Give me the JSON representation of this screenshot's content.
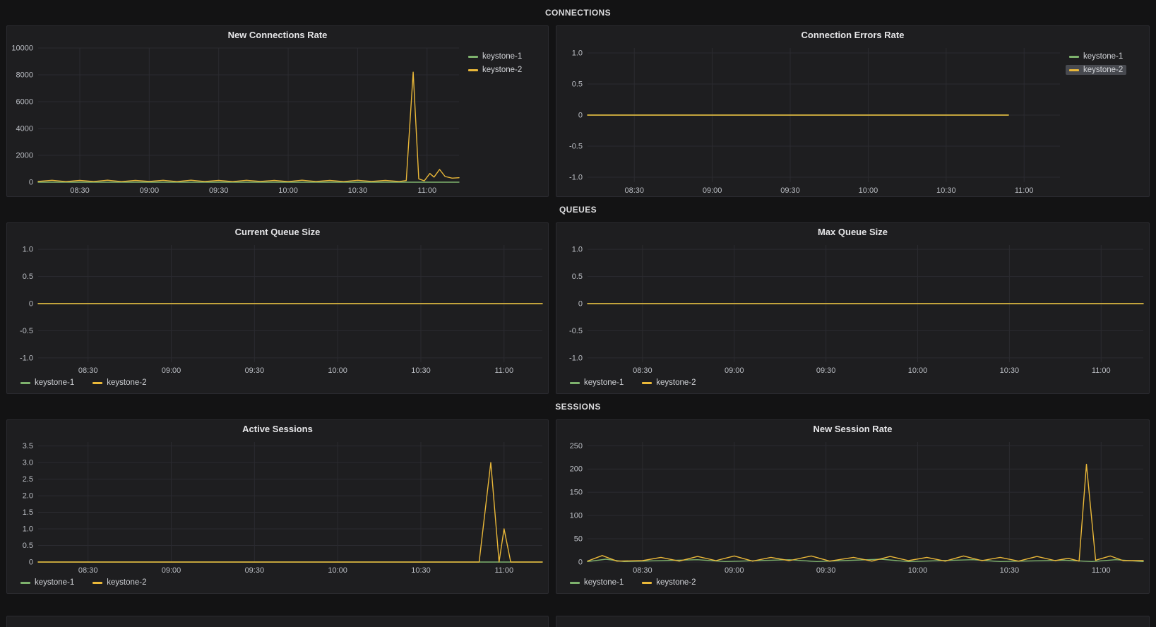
{
  "colors": {
    "background": "#131314",
    "panel_background": "#1e1e20",
    "grid": "#2b2b30",
    "tick_label": "#bcbfc5",
    "title": "#e6e6e8",
    "green": "#7eb26d",
    "yellow": "#eab839"
  },
  "dashboard": {
    "rows": [
      {
        "title": "CONNECTIONS"
      },
      {
        "title": "QUEUES"
      },
      {
        "title": "SESSIONS"
      }
    ]
  },
  "chart_data": [
    {
      "type": "line",
      "title": "New Connections Rate",
      "legend_position": "right",
      "grid": true,
      "xlim": [
        8.2,
        11.23
      ],
      "xtick_values": [
        8.5,
        9,
        9.5,
        10,
        10.5,
        11
      ],
      "xtick_labels": [
        "08:30",
        "09:00",
        "09:30",
        "10:00",
        "10:30",
        "11:00"
      ],
      "ylim": [
        0,
        10000
      ],
      "ytick_values": [
        0,
        2000,
        4000,
        6000,
        8000,
        10000
      ],
      "ytick_labels": [
        "0",
        "2000",
        "4000",
        "6000",
        "8000",
        "10000"
      ],
      "series": [
        {
          "name": "keystone-1",
          "color": "#7eb26d",
          "points": [
            [
              8.2,
              0
            ],
            [
              11.23,
              0
            ]
          ]
        },
        {
          "name": "keystone-2",
          "color": "#eab839",
          "points": [
            [
              8.2,
              60
            ],
            [
              8.3,
              140
            ],
            [
              8.4,
              40
            ],
            [
              8.5,
              130
            ],
            [
              8.6,
              50
            ],
            [
              8.7,
              150
            ],
            [
              8.8,
              40
            ],
            [
              8.9,
              130
            ],
            [
              9.0,
              60
            ],
            [
              9.1,
              140
            ],
            [
              9.2,
              40
            ],
            [
              9.3,
              150
            ],
            [
              9.4,
              50
            ],
            [
              9.5,
              130
            ],
            [
              9.6,
              40
            ],
            [
              9.7,
              140
            ],
            [
              9.8,
              60
            ],
            [
              9.9,
              130
            ],
            [
              10.0,
              40
            ],
            [
              10.1,
              150
            ],
            [
              10.2,
              50
            ],
            [
              10.3,
              130
            ],
            [
              10.4,
              40
            ],
            [
              10.5,
              140
            ],
            [
              10.6,
              60
            ],
            [
              10.7,
              130
            ],
            [
              10.8,
              50
            ],
            [
              10.85,
              120
            ],
            [
              10.9,
              8200
            ],
            [
              10.94,
              250
            ],
            [
              10.98,
              100
            ],
            [
              11.02,
              650
            ],
            [
              11.05,
              380
            ],
            [
              11.09,
              950
            ],
            [
              11.13,
              420
            ],
            [
              11.18,
              300
            ],
            [
              11.23,
              330
            ]
          ]
        }
      ]
    },
    {
      "type": "line",
      "title": "Connection Errors Rate",
      "legend_position": "right",
      "highlighted_series": "keystone-2",
      "grid": true,
      "xlim": [
        8.2,
        11.23
      ],
      "xtick_values": [
        8.5,
        9,
        9.5,
        10,
        10.5,
        11
      ],
      "xtick_labels": [
        "08:30",
        "09:00",
        "09:30",
        "10:00",
        "10:30",
        "11:00"
      ],
      "ylim": [
        -1.08,
        1.08
      ],
      "ytick_values": [
        1,
        0.5,
        0,
        -0.5,
        -1
      ],
      "ytick_labels": [
        "1.0",
        "0.5",
        "0",
        "-0.5",
        "-1.0"
      ],
      "series": [
        {
          "name": "keystone-1",
          "color": "#7eb26d",
          "points": [
            [
              8.2,
              0
            ],
            [
              10.9,
              0
            ]
          ]
        },
        {
          "name": "keystone-2",
          "color": "#eab839",
          "points": [
            [
              8.2,
              0
            ],
            [
              10.9,
              0
            ]
          ],
          "highlighted": true
        }
      ]
    },
    {
      "type": "line",
      "title": "Current Queue Size",
      "legend_position": "bottom",
      "grid": true,
      "xlim": [
        8.2,
        11.23
      ],
      "xtick_values": [
        8.5,
        9,
        9.5,
        10,
        10.5,
        11
      ],
      "xtick_labels": [
        "08:30",
        "09:00",
        "09:30",
        "10:00",
        "10:30",
        "11:00"
      ],
      "ylim": [
        -1.08,
        1.08
      ],
      "ytick_values": [
        1,
        0.5,
        0,
        -0.5,
        -1
      ],
      "ytick_labels": [
        "1.0",
        "0.5",
        "0",
        "-0.5",
        "-1.0"
      ],
      "series": [
        {
          "name": "keystone-1",
          "color": "#7eb26d",
          "points": [
            [
              8.2,
              0
            ],
            [
              11.23,
              0
            ]
          ]
        },
        {
          "name": "keystone-2",
          "color": "#eab839",
          "points": [
            [
              8.2,
              0
            ],
            [
              11.23,
              0
            ]
          ]
        }
      ]
    },
    {
      "type": "line",
      "title": "Max Queue Size",
      "legend_position": "bottom",
      "grid": true,
      "xlim": [
        8.2,
        11.23
      ],
      "xtick_values": [
        8.5,
        9,
        9.5,
        10,
        10.5,
        11
      ],
      "xtick_labels": [
        "08:30",
        "09:00",
        "09:30",
        "10:00",
        "10:30",
        "11:00"
      ],
      "ylim": [
        -1.08,
        1.08
      ],
      "ytick_values": [
        1,
        0.5,
        0,
        -0.5,
        -1
      ],
      "ytick_labels": [
        "1.0",
        "0.5",
        "0",
        "-0.5",
        "-1.0"
      ],
      "series": [
        {
          "name": "keystone-1",
          "color": "#7eb26d",
          "points": [
            [
              8.2,
              0
            ],
            [
              11.23,
              0
            ]
          ]
        },
        {
          "name": "keystone-2",
          "color": "#eab839",
          "points": [
            [
              8.2,
              0
            ],
            [
              11.23,
              0
            ]
          ]
        }
      ]
    },
    {
      "type": "line",
      "title": "Active Sessions",
      "legend_position": "bottom",
      "grid": true,
      "xlim": [
        8.2,
        11.23
      ],
      "xtick_values": [
        8.5,
        9,
        9.5,
        10,
        10.5,
        11
      ],
      "xtick_labels": [
        "08:30",
        "09:00",
        "09:30",
        "10:00",
        "10:30",
        "11:00"
      ],
      "ylim": [
        0,
        3.62
      ],
      "ytick_values": [
        0,
        0.5,
        1,
        1.5,
        2,
        2.5,
        3,
        3.5
      ],
      "ytick_labels": [
        "0",
        "0.5",
        "1.0",
        "1.5",
        "2.0",
        "2.5",
        "3.0",
        "3.5"
      ],
      "series": [
        {
          "name": "keystone-1",
          "color": "#7eb26d",
          "points": [
            [
              8.2,
              0
            ],
            [
              11.23,
              0
            ]
          ]
        },
        {
          "name": "keystone-2",
          "color": "#eab839",
          "points": [
            [
              8.2,
              0
            ],
            [
              10.85,
              0
            ],
            [
              10.92,
              3.0
            ],
            [
              10.97,
              0
            ],
            [
              11.0,
              1.0
            ],
            [
              11.04,
              0
            ],
            [
              11.23,
              0
            ]
          ]
        }
      ]
    },
    {
      "type": "line",
      "title": "New Session Rate",
      "legend_position": "bottom",
      "grid": true,
      "xlim": [
        8.2,
        11.23
      ],
      "xtick_values": [
        8.5,
        9,
        9.5,
        10,
        10.5,
        11
      ],
      "xtick_labels": [
        "08:30",
        "09:00",
        "09:30",
        "10:00",
        "10:30",
        "11:00"
      ],
      "ylim": [
        0,
        258
      ],
      "ytick_values": [
        0,
        50,
        100,
        150,
        200,
        250
      ],
      "ytick_labels": [
        "0",
        "50",
        "100",
        "150",
        "200",
        "250"
      ],
      "series": [
        {
          "name": "keystone-1",
          "color": "#7eb26d",
          "points": [
            [
              8.2,
              1
            ],
            [
              8.3,
              6
            ],
            [
              8.4,
              1
            ],
            [
              8.8,
              5
            ],
            [
              8.95,
              1
            ],
            [
              9.3,
              5
            ],
            [
              9.45,
              1
            ],
            [
              9.8,
              6
            ],
            [
              9.95,
              1
            ],
            [
              10.3,
              5
            ],
            [
              10.45,
              1
            ],
            [
              10.8,
              4
            ],
            [
              10.95,
              1
            ],
            [
              11.08,
              5
            ],
            [
              11.23,
              1
            ]
          ]
        },
        {
          "name": "keystone-2",
          "color": "#eab839",
          "points": [
            [
              8.2,
              2
            ],
            [
              8.28,
              14
            ],
            [
              8.36,
              2
            ],
            [
              8.5,
              3
            ],
            [
              8.6,
              10
            ],
            [
              8.7,
              2
            ],
            [
              8.8,
              12
            ],
            [
              8.9,
              3
            ],
            [
              9.0,
              13
            ],
            [
              9.1,
              2
            ],
            [
              9.2,
              10
            ],
            [
              9.3,
              3
            ],
            [
              9.42,
              13
            ],
            [
              9.52,
              2
            ],
            [
              9.65,
              10
            ],
            [
              9.75,
              2
            ],
            [
              9.85,
              12
            ],
            [
              9.95,
              3
            ],
            [
              10.05,
              10
            ],
            [
              10.15,
              2
            ],
            [
              10.25,
              13
            ],
            [
              10.35,
              3
            ],
            [
              10.45,
              10
            ],
            [
              10.55,
              2
            ],
            [
              10.65,
              12
            ],
            [
              10.75,
              3
            ],
            [
              10.82,
              8
            ],
            [
              10.88,
              2
            ],
            [
              10.92,
              210
            ],
            [
              10.97,
              4
            ],
            [
              11.05,
              13
            ],
            [
              11.12,
              3
            ],
            [
              11.23,
              3
            ]
          ]
        }
      ]
    }
  ]
}
